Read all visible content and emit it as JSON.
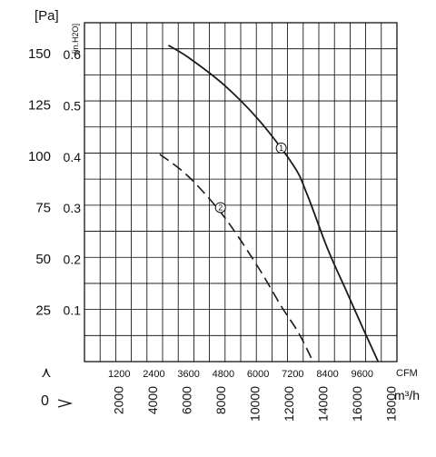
{
  "chart_data": {
    "type": "line",
    "units": {
      "pa": "[Pa]",
      "inh2o": "[in.H2O]",
      "cfm": "CFM",
      "m3h": "m³/h",
      "corner_up": "⋏",
      "corner_zero": "0"
    },
    "y_pa_ticks": [
      "150",
      "125",
      "100",
      "75",
      "50",
      "25"
    ],
    "y_in_ticks": [
      "0.6",
      "0.5",
      "0.4",
      "0.3",
      "0.2",
      "0.1"
    ],
    "x_cfm_ticks": [
      "1200",
      "2400",
      "3600",
      "4800",
      "6000",
      "7200",
      "8400",
      "9600"
    ],
    "x_m3h_ticks": [
      "2000",
      "4000",
      "6000",
      "8000",
      "10000",
      "12000",
      "14000",
      "16000",
      "18000"
    ],
    "xlim_cfm": [
      0,
      10800
    ],
    "ylim_pa": [
      0,
      165
    ],
    "grid": true,
    "series": [
      {
        "name": "1",
        "style": "solid",
        "x_cfm": [
          2900,
          3600,
          4800,
          6000,
          7200,
          7680,
          8400,
          9000,
          9600,
          10150
        ],
        "y_pa": [
          154,
          148,
          135,
          118,
          96,
          82,
          55,
          36,
          17,
          0
        ]
      },
      {
        "name": "2",
        "style": "dashed",
        "x_cfm": [
          2600,
          3600,
          4800,
          6000,
          6800,
          7400,
          7900
        ],
        "y_pa": [
          101,
          90,
          71,
          46,
          27,
          14,
          0
        ]
      }
    ]
  }
}
